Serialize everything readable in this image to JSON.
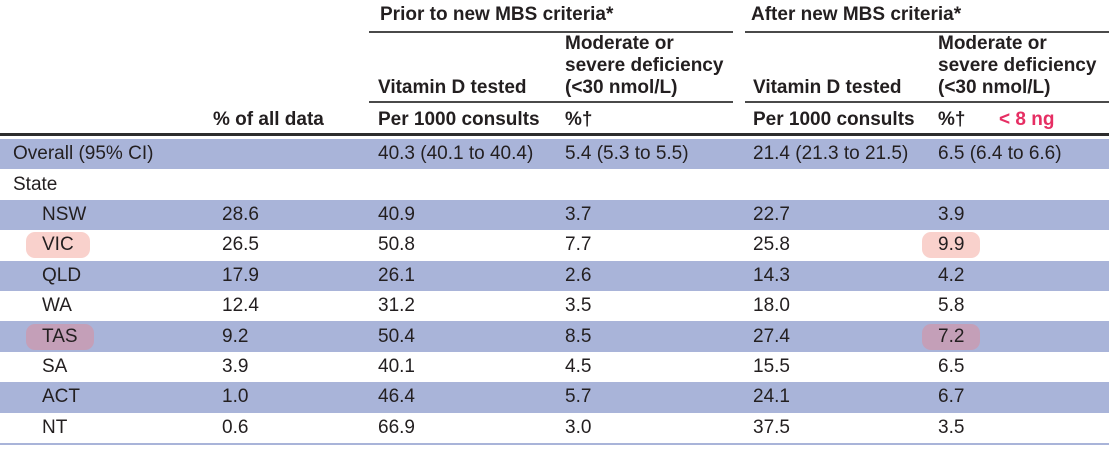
{
  "table": {
    "header": {
      "prior_group": "Prior to new MBS criteria*",
      "after_group": "After new MBS criteria*",
      "pct_all_data": "% of all data",
      "vitamin_d_tested": "Vitamin D tested",
      "deficiency": "Moderate or\nsevere deficiency\n(<30 nmol/L)",
      "per_1000": "Per 1000 consults",
      "pct_dagger": "%†",
      "annotation": "< 8 ng"
    },
    "rows": [
      {
        "type": "overall",
        "shaded": true,
        "indent": false,
        "cells": [
          "Overall (95% CI)",
          "",
          "40.3 (40.1 to 40.4)",
          "5.4 (5.3 to 5.5)",
          "21.4 (21.3 to 21.5)",
          "6.5 (6.4 to 6.6)"
        ]
      },
      {
        "type": "section",
        "shaded": false,
        "indent": false,
        "cells": [
          "State",
          "",
          "",
          "",
          "",
          ""
        ]
      },
      {
        "type": "state",
        "shaded": true,
        "indent": true,
        "cells": [
          "NSW",
          "28.6",
          "40.9",
          "3.7",
          "22.7",
          "3.9"
        ]
      },
      {
        "type": "state",
        "shaded": false,
        "indent": true,
        "cells": [
          "VIC",
          "26.5",
          "50.8",
          "7.7",
          "25.8",
          "9.9"
        ],
        "highlights": {
          "0": "pink",
          "5": "pink"
        }
      },
      {
        "type": "state",
        "shaded": true,
        "indent": true,
        "cells": [
          "QLD",
          "17.9",
          "26.1",
          "2.6",
          "14.3",
          "4.2"
        ]
      },
      {
        "type": "state",
        "shaded": false,
        "indent": true,
        "cells": [
          "WA",
          "12.4",
          "31.2",
          "3.5",
          "18.0",
          "5.8"
        ]
      },
      {
        "type": "state",
        "shaded": true,
        "indent": true,
        "cells": [
          "TAS",
          "9.2",
          "50.4",
          "8.5",
          "27.4",
          "7.2"
        ],
        "highlights": {
          "0": "mauve",
          "5": "mauve"
        }
      },
      {
        "type": "state",
        "shaded": false,
        "indent": true,
        "cells": [
          "SA",
          "3.9",
          "40.1",
          "4.5",
          "15.5",
          "6.5"
        ]
      },
      {
        "type": "state",
        "shaded": true,
        "indent": true,
        "cells": [
          "ACT",
          "1.0",
          "46.4",
          "5.7",
          "24.1",
          "6.7"
        ]
      },
      {
        "type": "state",
        "shaded": false,
        "indent": true,
        "cells": [
          "NT",
          "0.6",
          "66.9",
          "3.0",
          "37.5",
          "3.5"
        ]
      }
    ]
  },
  "colors": {
    "row_shade": "#a9b4d9",
    "hl_pink": "#f9d1cc",
    "hl_mauve": "#c49fb8",
    "annotation_pink": "#e62e63",
    "rule_dark": "#2d2d2d",
    "text": "#231f20"
  }
}
